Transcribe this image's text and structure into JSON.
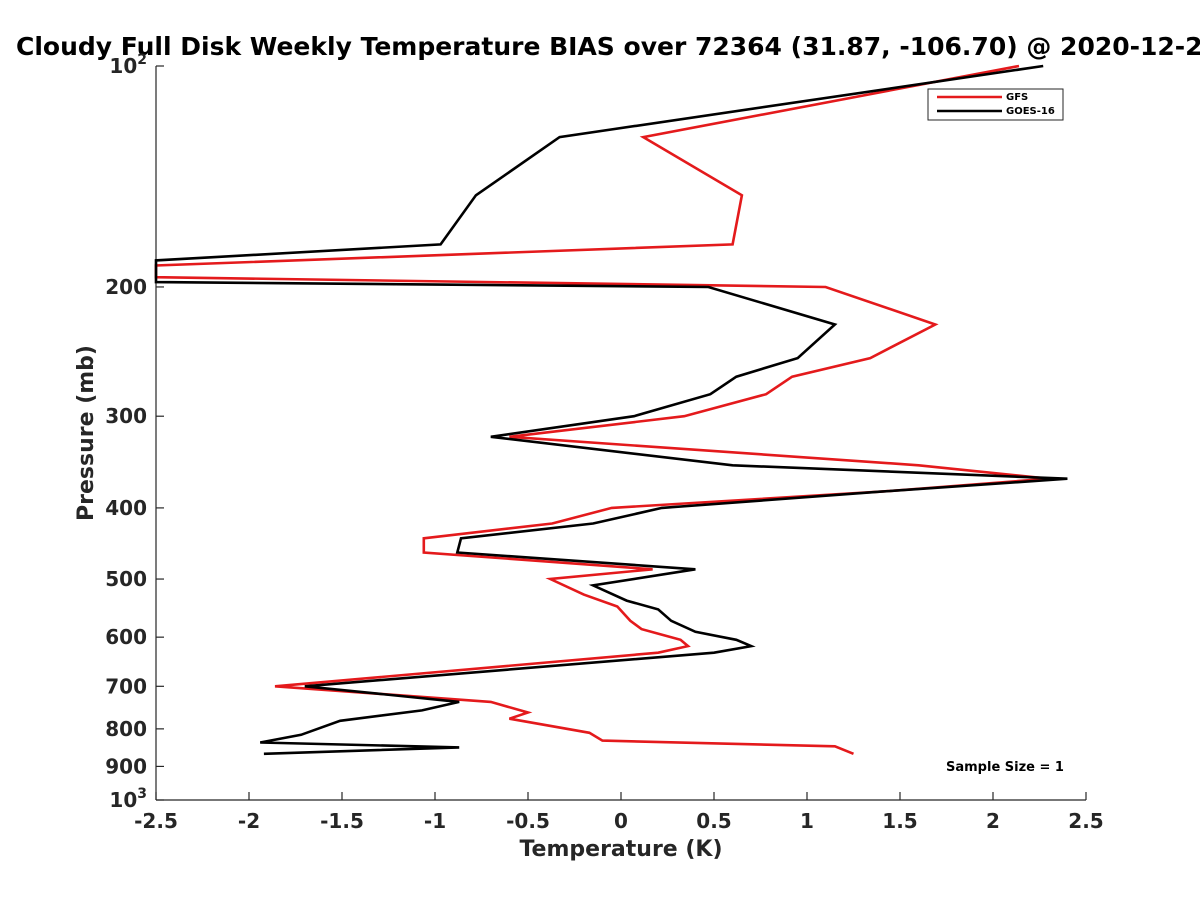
{
  "chart_data": {
    "type": "line",
    "title": "Cloudy Full Disk Weekly Temperature BIAS over 72364 (31.87, -106.70) @ 2020-12-2",
    "xlabel": "Temperature (K)",
    "ylabel": "Pressure (mb)",
    "xlim": [
      -2.5,
      2.5
    ],
    "ylim": [
      100,
      1000
    ],
    "y_scale": "log",
    "y_reversed": true,
    "x_ticks": [
      "-2.5",
      "-2",
      "-1.5",
      "-1",
      "-0.5",
      "0",
      "0.5",
      "1",
      "1.5",
      "2",
      "2.5"
    ],
    "y_ticks": [
      {
        "value": 100,
        "label": "10",
        "exp": "2"
      },
      {
        "value": 200,
        "label": "200"
      },
      {
        "value": 300,
        "label": "300"
      },
      {
        "value": 400,
        "label": "400"
      },
      {
        "value": 500,
        "label": "500"
      },
      {
        "value": 600,
        "label": "600"
      },
      {
        "value": 700,
        "label": "700"
      },
      {
        "value": 800,
        "label": "800"
      },
      {
        "value": 900,
        "label": "900"
      },
      {
        "value": 1000,
        "label": "10",
        "exp": "3"
      }
    ],
    "legend_position": "top-right",
    "annotation": "Sample Size = 1",
    "series": [
      {
        "name": "GFS",
        "color": "#e41a1c",
        "points": [
          {
            "x": 2.14,
            "p": 100
          },
          {
            "x": 0.12,
            "p": 125
          },
          {
            "x": 0.65,
            "p": 150
          },
          {
            "x": 0.6,
            "p": 175
          },
          {
            "x": -2.5,
            "p": 187
          },
          {
            "x": -2.5,
            "p": 194
          },
          {
            "x": 1.1,
            "p": 200
          },
          {
            "x": 1.69,
            "p": 225
          },
          {
            "x": 1.34,
            "p": 250
          },
          {
            "x": 0.92,
            "p": 265
          },
          {
            "x": 0.78,
            "p": 280
          },
          {
            "x": 0.34,
            "p": 300
          },
          {
            "x": -0.6,
            "p": 320
          },
          {
            "x": 1.6,
            "p": 350
          },
          {
            "x": 2.3,
            "p": 365
          },
          {
            "x": 1.4,
            "p": 380
          },
          {
            "x": -0.05,
            "p": 400
          },
          {
            "x": -0.37,
            "p": 420
          },
          {
            "x": -1.06,
            "p": 440
          },
          {
            "x": -1.06,
            "p": 460
          },
          {
            "x": 0.17,
            "p": 485
          },
          {
            "x": -0.38,
            "p": 500
          },
          {
            "x": -0.2,
            "p": 525
          },
          {
            "x": -0.02,
            "p": 545
          },
          {
            "x": 0.05,
            "p": 570
          },
          {
            "x": 0.11,
            "p": 585
          },
          {
            "x": 0.32,
            "p": 605
          },
          {
            "x": 0.36,
            "p": 617
          },
          {
            "x": 0.2,
            "p": 630
          },
          {
            "x": -1.86,
            "p": 700
          },
          {
            "x": -0.7,
            "p": 735
          },
          {
            "x": -0.5,
            "p": 760
          },
          {
            "x": -0.6,
            "p": 775
          },
          {
            "x": -0.17,
            "p": 810
          },
          {
            "x": -0.1,
            "p": 830
          },
          {
            "x": 1.15,
            "p": 845
          },
          {
            "x": 1.25,
            "p": 865
          }
        ]
      },
      {
        "name": "GOES-16",
        "color": "#000000",
        "points": [
          {
            "x": 2.27,
            "p": 100
          },
          {
            "x": -0.33,
            "p": 125
          },
          {
            "x": -0.78,
            "p": 150
          },
          {
            "x": -0.97,
            "p": 175
          },
          {
            "x": -2.5,
            "p": 184
          },
          {
            "x": -2.5,
            "p": 197
          },
          {
            "x": 0.47,
            "p": 200
          },
          {
            "x": 1.15,
            "p": 225
          },
          {
            "x": 0.95,
            "p": 250
          },
          {
            "x": 0.62,
            "p": 265
          },
          {
            "x": 0.48,
            "p": 280
          },
          {
            "x": 0.07,
            "p": 300
          },
          {
            "x": -0.7,
            "p": 320
          },
          {
            "x": 0.6,
            "p": 350
          },
          {
            "x": 2.4,
            "p": 365
          },
          {
            "x": 1.4,
            "p": 380
          },
          {
            "x": 0.22,
            "p": 400
          },
          {
            "x": -0.15,
            "p": 420
          },
          {
            "x": -0.86,
            "p": 440
          },
          {
            "x": -0.88,
            "p": 460
          },
          {
            "x": 0.4,
            "p": 485
          },
          {
            "x": -0.15,
            "p": 510
          },
          {
            "x": 0.03,
            "p": 535
          },
          {
            "x": 0.2,
            "p": 550
          },
          {
            "x": 0.27,
            "p": 570
          },
          {
            "x": 0.4,
            "p": 590
          },
          {
            "x": 0.62,
            "p": 605
          },
          {
            "x": 0.7,
            "p": 617
          },
          {
            "x": 0.5,
            "p": 630
          },
          {
            "x": -1.7,
            "p": 700
          },
          {
            "x": -0.87,
            "p": 735
          },
          {
            "x": -1.07,
            "p": 755
          },
          {
            "x": -1.51,
            "p": 780
          },
          {
            "x": -1.72,
            "p": 815
          },
          {
            "x": -1.94,
            "p": 835
          },
          {
            "x": -0.87,
            "p": 848
          },
          {
            "x": -1.92,
            "p": 865
          }
        ]
      }
    ]
  }
}
